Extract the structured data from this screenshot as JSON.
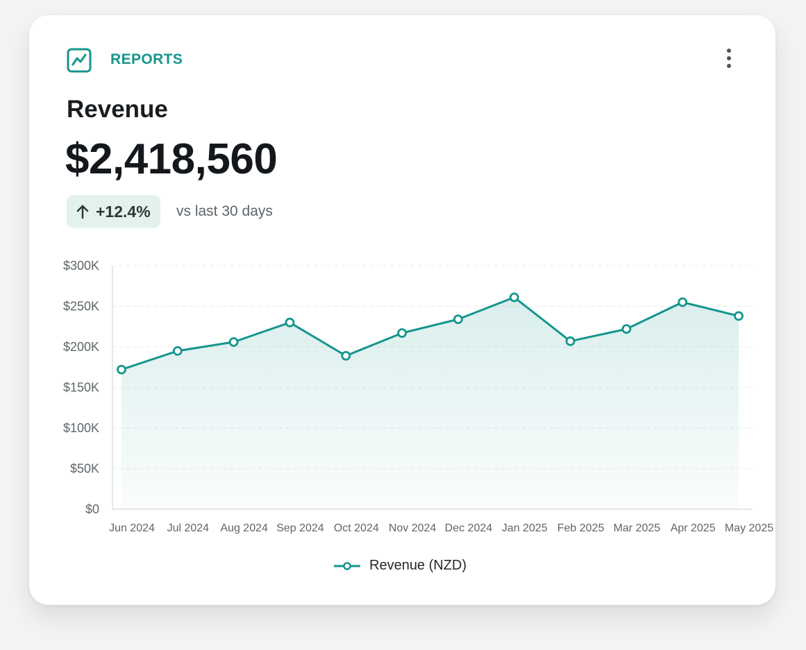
{
  "header": {
    "brand_label": "REPORTS",
    "brand_icon": "trend-chart-icon",
    "menu_icon": "more-vertical-icon"
  },
  "kpi": {
    "title": "Revenue",
    "value": "$2,418,560",
    "change": "+12.4%",
    "change_icon": "arrow-up-icon",
    "change_caption": "vs last 30 days"
  },
  "colors": {
    "accent": "#14958c",
    "badge_bg": "#e3f2ef"
  },
  "chart_data": {
    "type": "area",
    "categories": [
      "Jun 2024",
      "Jul 2024",
      "Aug 2024",
      "Sep 2024",
      "Oct 2024",
      "Nov 2024",
      "Dec 2024",
      "Jan 2025",
      "Feb 2025",
      "Mar 2025",
      "Apr 2025",
      "May 2025"
    ],
    "series": [
      {
        "name": "Revenue (NZD)",
        "values": [
          172000,
          195000,
          206000,
          230000,
          189000,
          217000,
          234000,
          261000,
          207000,
          222000,
          255000,
          238000
        ],
        "color": "#14958c"
      }
    ],
    "ylim": [
      0,
      300000
    ],
    "yticks": [
      0,
      50000,
      100000,
      150000,
      200000,
      250000,
      300000
    ],
    "ytick_labels": [
      "$0",
      "$50K",
      "$100K",
      "$150K",
      "$200K",
      "$250K",
      "$300K"
    ],
    "grid": true,
    "legend": "bottom-center",
    "markers": "open-circle"
  }
}
